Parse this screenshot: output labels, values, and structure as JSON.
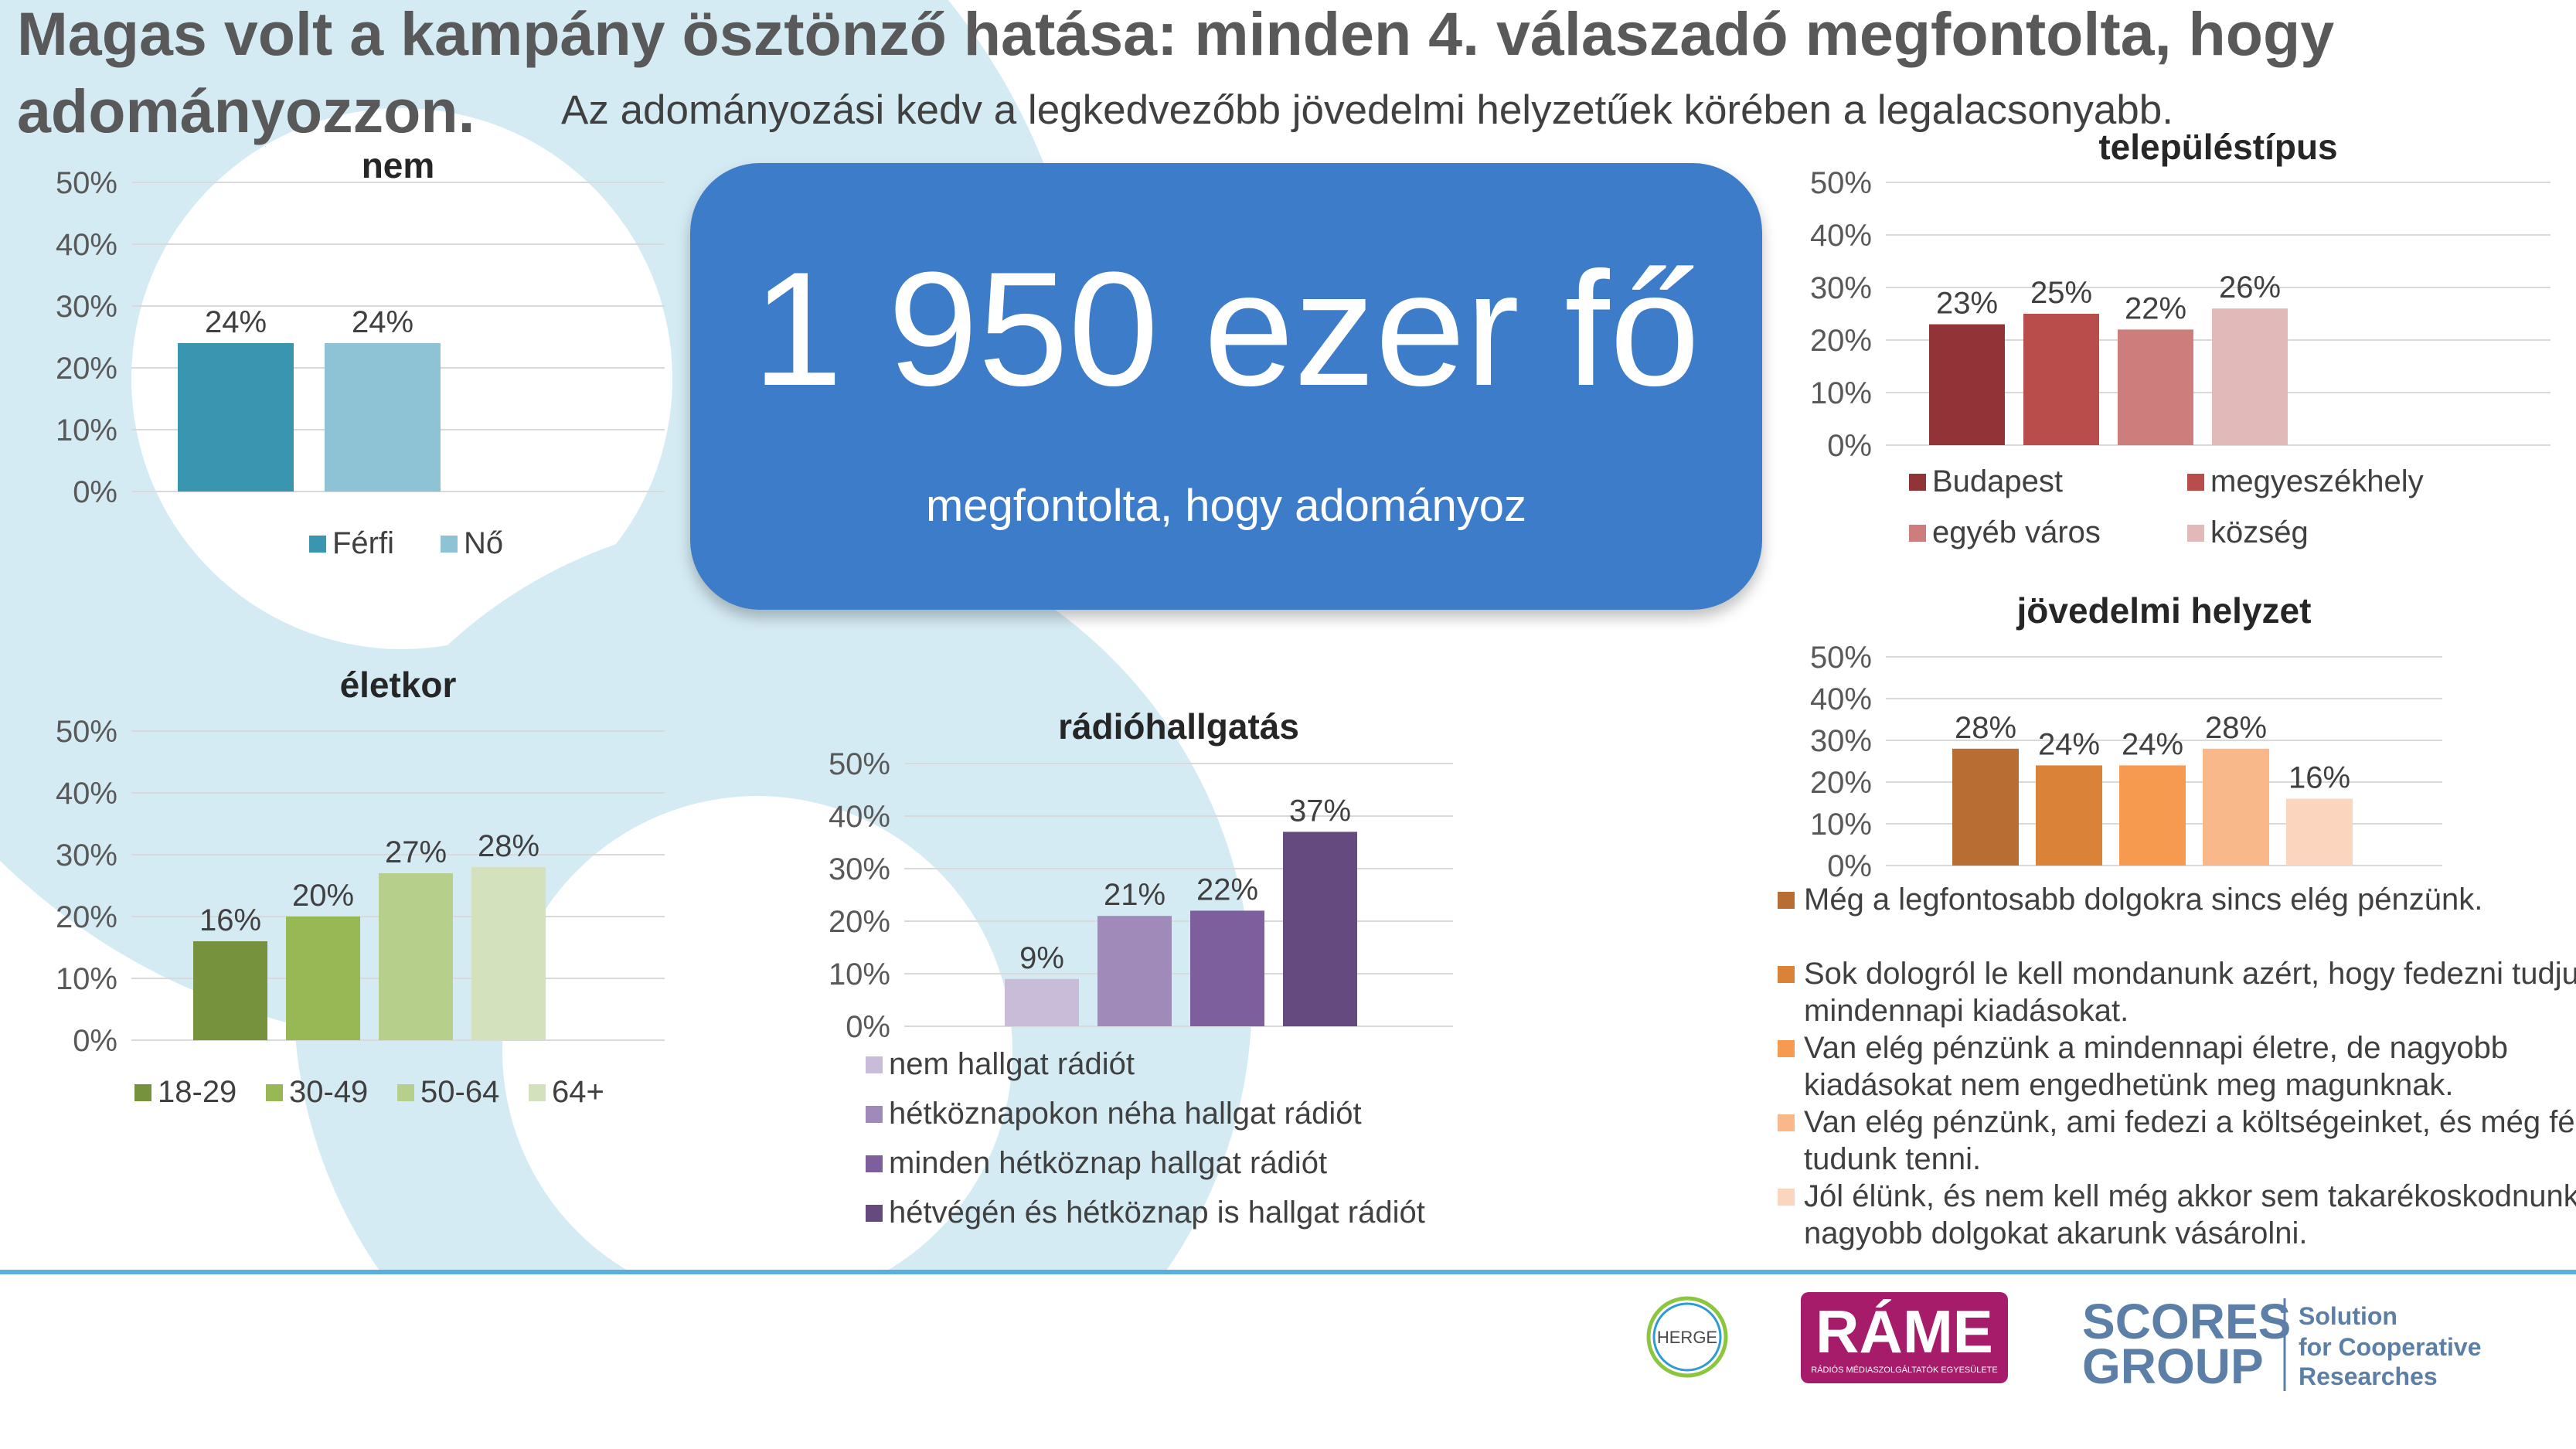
{
  "header": {
    "headline": "Magas volt a kampány ösztönző hatása: minden 4. válaszadó megfontolta, hogy adományozzon.",
    "subline": "Az adományozási kedv a legkedvezőbb jövedelmi helyzetűek körében a legalacsonyabb."
  },
  "highlight": {
    "number": "1 950 ezer fő",
    "caption": "megfontolta, hogy adományoz"
  },
  "chart_data": [
    {
      "id": "nem",
      "type": "bar",
      "title": "nem",
      "categories": [
        "Férfi",
        "Nő"
      ],
      "values": [
        24,
        24
      ],
      "data_labels": [
        "24%",
        "24%"
      ],
      "colors": [
        "#3a96b0",
        "#8dc3d5"
      ],
      "yticks": [
        "0%",
        "10%",
        "20%",
        "30%",
        "40%",
        "50%"
      ],
      "ylim": [
        0,
        50
      ],
      "legend": [
        "Férfi",
        "Nő"
      ],
      "legend_position": "bottom"
    },
    {
      "id": "telepules",
      "type": "bar",
      "title": "településtípus",
      "categories": [
        "Budapest",
        "megyeszékhely",
        "egyéb város",
        "község"
      ],
      "values": [
        23,
        25,
        22,
        26
      ],
      "data_labels": [
        "23%",
        "25%",
        "22%",
        "26%"
      ],
      "colors": [
        "#923338",
        "#b84d4c",
        "#cd7d7b",
        "#e2b9b9"
      ],
      "yticks": [
        "0%",
        "10%",
        "20%",
        "30%",
        "40%",
        "50%"
      ],
      "ylim": [
        0,
        50
      ],
      "legend": [
        "Budapest",
        "megyeszékhely",
        "egyéb város",
        "község"
      ],
      "legend_position": "bottom"
    },
    {
      "id": "eletkor",
      "type": "bar",
      "title": "életkor",
      "categories": [
        "18-29",
        "30-49",
        "50-64",
        "64+"
      ],
      "values": [
        16,
        20,
        27,
        28
      ],
      "data_labels": [
        "16%",
        "20%",
        "27%",
        "28%"
      ],
      "colors": [
        "#76923c",
        "#97b854",
        "#b6d08b",
        "#d3e2bc"
      ],
      "yticks": [
        "0%",
        "10%",
        "20%",
        "30%",
        "40%",
        "50%"
      ],
      "ylim": [
        0,
        50
      ],
      "legend": [
        "18-29",
        "30-49",
        "50-64",
        "64+"
      ],
      "legend_position": "bottom"
    },
    {
      "id": "radio",
      "type": "bar",
      "title": "rádióhallgatás",
      "categories": [
        "nem hallgat rádiót",
        "hétköznapokon néha hallgat rádiót",
        "minden hétköznap hallgat rádiót",
        "hétvégén és hétköznap is hallgat rádiót"
      ],
      "values": [
        9,
        21,
        22,
        37
      ],
      "data_labels": [
        "9%",
        "21%",
        "22%",
        "37%"
      ],
      "colors": [
        "#c9bcd8",
        "#a08ab9",
        "#7e5f9e",
        "#644a7f"
      ],
      "yticks": [
        "0%",
        "10%",
        "20%",
        "30%",
        "40%",
        "50%"
      ],
      "ylim": [
        0,
        50
      ],
      "legend": [
        "nem hallgat rádiót",
        "hétköznapokon néha hallgat rádiót",
        "minden hétköznap hallgat rádiót",
        "hétvégén és hétköznap is hallgat rádiót"
      ],
      "legend_position": "bottom"
    },
    {
      "id": "jovedelem",
      "type": "bar",
      "title": "jövedelmi helyzet",
      "categories": [
        "Még a legfontosabb dolgokra sincs elég pénzünk.",
        "Sok dologról le kell mondanunk azért, hogy fedezni tudjuk a mindennapi kiadásokat.",
        "Van elég pénzünk a mindennapi életre, de nagyobb kiadásokat nem engedhetünk meg magunknak.",
        "Van elég pénzünk, ami fedezi a költségeinket, és még félre is tudunk tenni.",
        "Jól élünk, és nem kell még akkor sem takarékoskodnunk, ha nagyobb dolgokat akarunk vásárolni."
      ],
      "values": [
        28,
        24,
        24,
        28,
        16
      ],
      "data_labels": [
        "28%",
        "24%",
        "24%",
        "28%",
        "16%"
      ],
      "colors": [
        "#b86e32",
        "#db8239",
        "#f59a4e",
        "#f9b889",
        "#fbd5bd"
      ],
      "yticks": [
        "0%",
        "10%",
        "20%",
        "30%",
        "40%",
        "50%"
      ],
      "ylim": [
        0,
        50
      ],
      "legend_position": "bottom"
    }
  ],
  "logos": {
    "herge": "HERGE",
    "rame": "RÁME",
    "rame_sub": "RÁDIÓS MÉDIASZOLGÁLTATÓK EGYESÜLETE",
    "scores_1": "SCORES",
    "scores_2": "GROUP",
    "scores_tag_1": "Solution",
    "scores_tag_2": "for Cooperative",
    "scores_tag_3": "Researches"
  }
}
